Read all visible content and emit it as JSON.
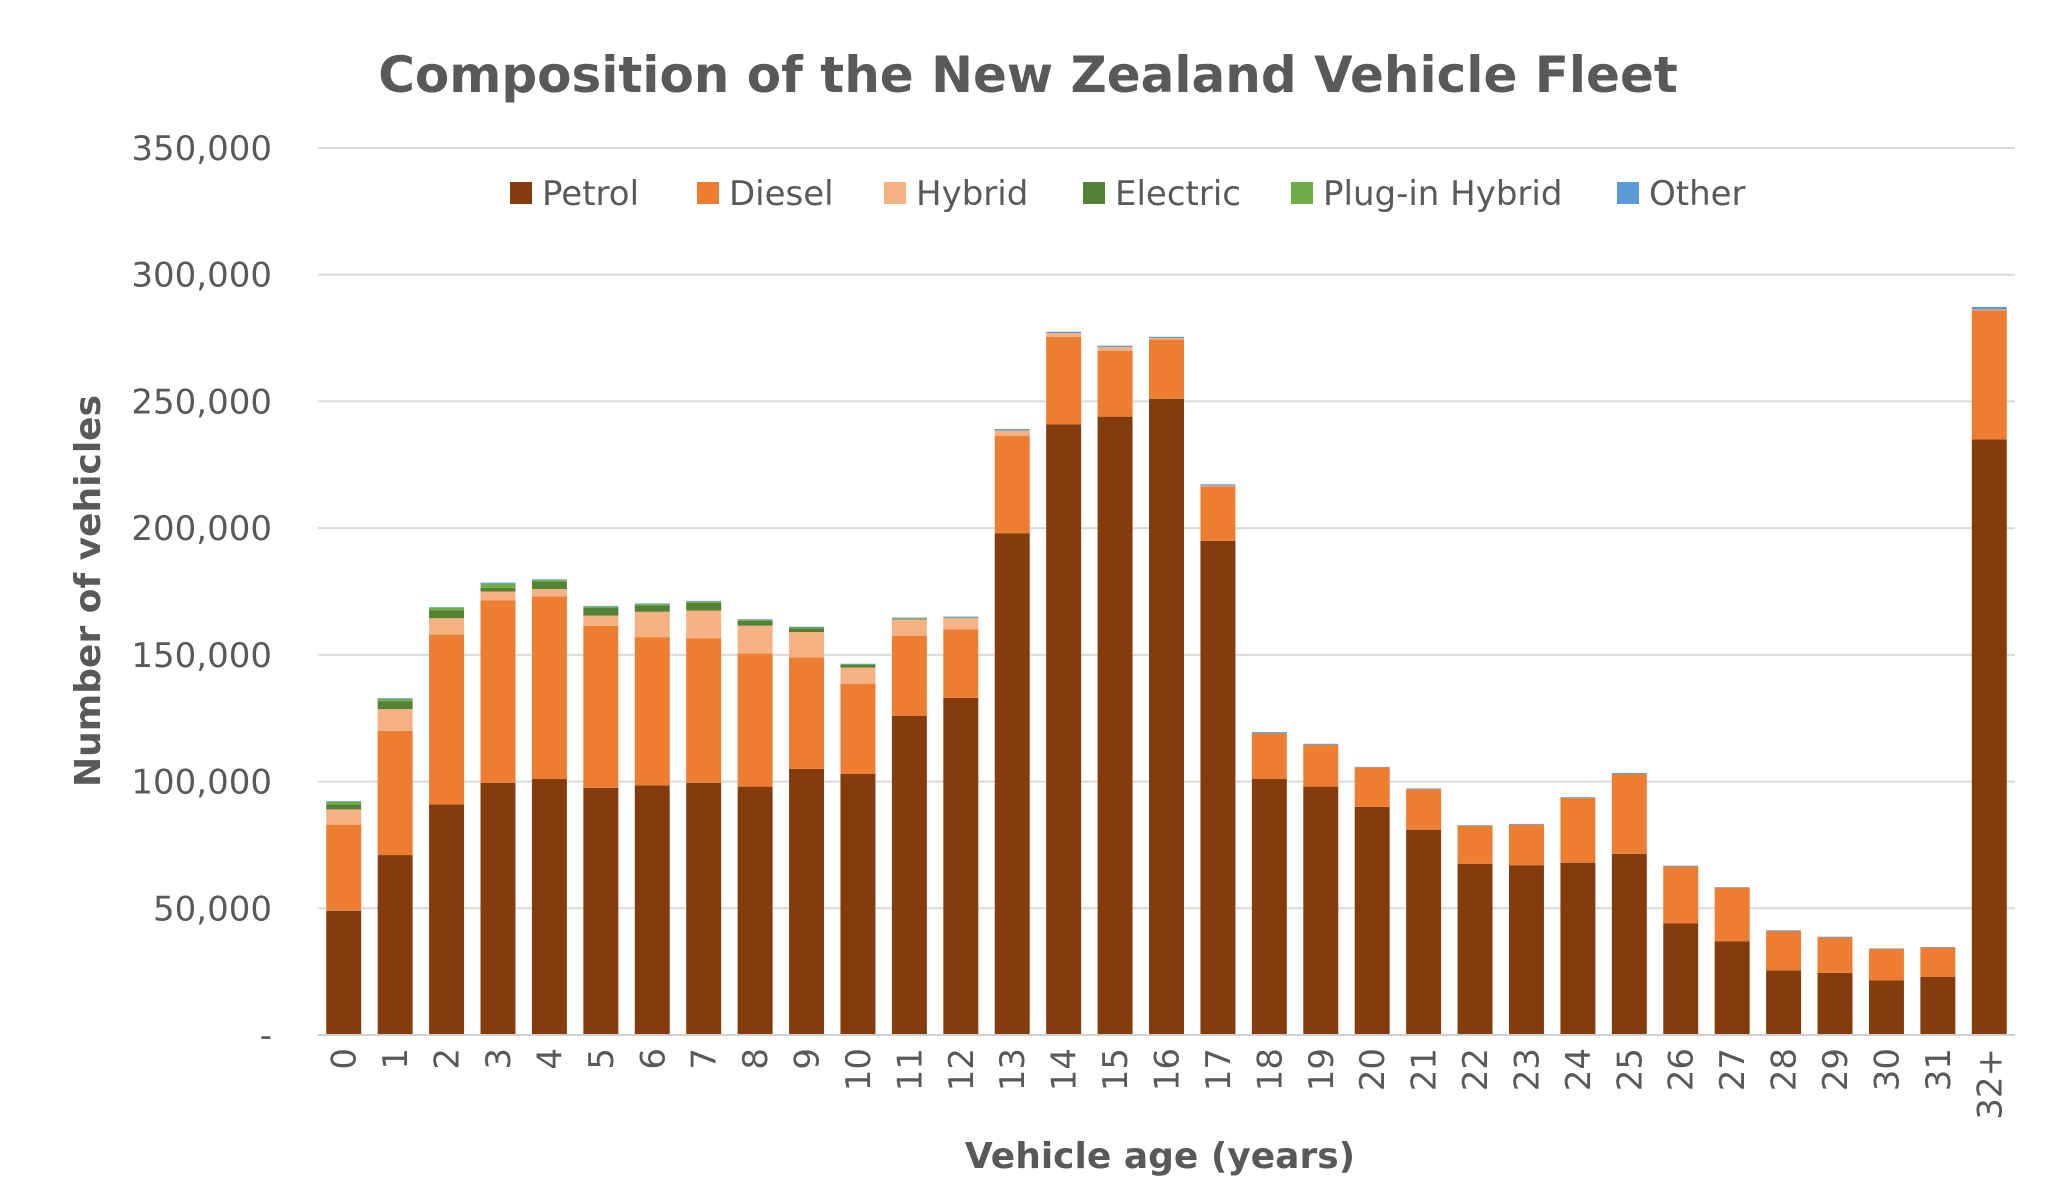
{
  "chart_data": {
    "type": "bar",
    "stacked": true,
    "title": "Composition of the New Zealand Vehicle Fleet",
    "xlabel": "Vehicle age (years)",
    "ylabel": "Number of vehicles",
    "ylim": [
      0,
      350000
    ],
    "yticks": [
      0,
      50000,
      100000,
      150000,
      200000,
      250000,
      300000,
      350000
    ],
    "ytick_labels": [
      "-",
      "50,000",
      "100,000",
      "150,000",
      "200,000",
      "250,000",
      "300,000",
      "350,000"
    ],
    "grid": true,
    "legend_position": "top",
    "categories": [
      "0",
      "1",
      "2",
      "3",
      "4",
      "5",
      "6",
      "7",
      "8",
      "9",
      "10",
      "11",
      "12",
      "13",
      "14",
      "15",
      "16",
      "17",
      "18",
      "19",
      "20",
      "21",
      "22",
      "23",
      "24",
      "25",
      "26",
      "27",
      "28",
      "29",
      "30",
      "31",
      "32+"
    ],
    "series": [
      {
        "name": "Petrol",
        "color": "#843C0C",
        "values": [
          49000,
          71000,
          91000,
          99500,
          101000,
          97500,
          98500,
          99500,
          98000,
          105000,
          103000,
          126000,
          133000,
          198000,
          241000,
          244000,
          251000,
          195000,
          101000,
          98000,
          90000,
          81000,
          67500,
          67000,
          68000,
          71500,
          44000,
          37000,
          25500,
          24500,
          21500,
          23000,
          235000
        ]
      },
      {
        "name": "Diesel",
        "color": "#ED7D31",
        "values": [
          34000,
          49000,
          67000,
          72000,
          72000,
          64000,
          58500,
          57000,
          52500,
          44000,
          35500,
          31500,
          27000,
          38500,
          34500,
          26000,
          23500,
          21500,
          18000,
          16500,
          15500,
          16000,
          15000,
          16000,
          25500,
          31500,
          22500,
          21000,
          15500,
          14000,
          12500,
          11500,
          51000
        ]
      },
      {
        "name": "Hybrid",
        "color": "#F4B183",
        "values": [
          6000,
          8600,
          6500,
          3500,
          3000,
          4000,
          10000,
          11000,
          11000,
          10000,
          6500,
          6500,
          4500,
          2000,
          1500,
          1500,
          500,
          300,
          0,
          0,
          0,
          0,
          0,
          0,
          0,
          0,
          0,
          0,
          0,
          0,
          0,
          0,
          300
        ]
      },
      {
        "name": "Electric",
        "color": "#548235",
        "values": [
          2000,
          3000,
          3000,
          1500,
          3000,
          3000,
          2500,
          3000,
          2000,
          1500,
          1000,
          300,
          200,
          100,
          0,
          0,
          0,
          0,
          0,
          0,
          0,
          0,
          0,
          0,
          0,
          0,
          0,
          0,
          0,
          0,
          0,
          0,
          0
        ]
      },
      {
        "name": "Plug-in Hybrid",
        "color": "#70AD47",
        "values": [
          1000,
          1000,
          1000,
          1500,
          500,
          500,
          500,
          500,
          300,
          300,
          200,
          100,
          100,
          0,
          0,
          0,
          0,
          0,
          0,
          0,
          0,
          0,
          0,
          0,
          0,
          0,
          0,
          0,
          0,
          0,
          0,
          0,
          0
        ]
      },
      {
        "name": "Other",
        "color": "#5B9BD5",
        "values": [
          300,
          300,
          300,
          500,
          300,
          300,
          300,
          300,
          300,
          300,
          300,
          300,
          300,
          500,
          500,
          500,
          500,
          500,
          500,
          400,
          300,
          300,
          300,
          300,
          300,
          400,
          300,
          300,
          300,
          300,
          200,
          200,
          1000
        ]
      }
    ]
  }
}
